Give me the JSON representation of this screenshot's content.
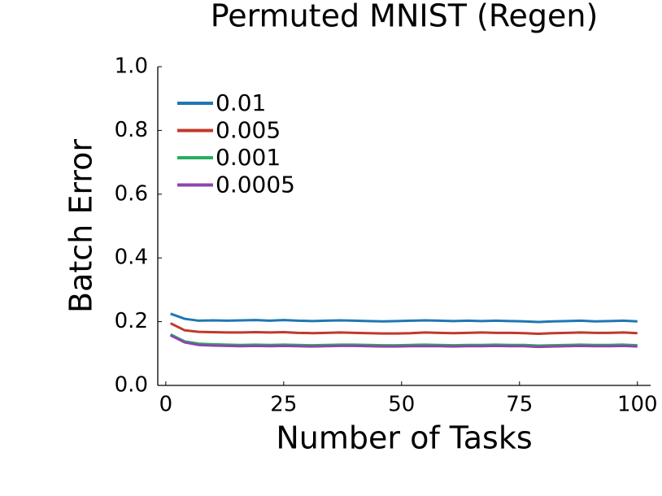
{
  "chart_data": {
    "type": "line",
    "title": "Permuted MNIST (Regen)",
    "x_label": "Number of Tasks",
    "y_label": "Batch Error",
    "x": [
      1,
      4,
      7,
      10,
      13,
      16,
      19,
      22,
      25,
      28,
      31,
      34,
      37,
      40,
      43,
      46,
      49,
      52,
      55,
      58,
      61,
      64,
      67,
      70,
      73,
      76,
      79,
      82,
      85,
      88,
      91,
      94,
      97,
      100
    ],
    "series": [
      {
        "name": "0.01",
        "color": "#1f77b4",
        "values": [
          0.225,
          0.209,
          0.203,
          0.204,
          0.203,
          0.204,
          0.205,
          0.203,
          0.205,
          0.203,
          0.202,
          0.203,
          0.204,
          0.203,
          0.202,
          0.201,
          0.202,
          0.203,
          0.204,
          0.203,
          0.202,
          0.203,
          0.202,
          0.203,
          0.202,
          0.201,
          0.199,
          0.201,
          0.202,
          0.203,
          0.201,
          0.202,
          0.203,
          0.201
        ]
      },
      {
        "name": "0.005",
        "color": "#c0392b",
        "values": [
          0.195,
          0.173,
          0.168,
          0.167,
          0.166,
          0.166,
          0.167,
          0.166,
          0.167,
          0.165,
          0.164,
          0.165,
          0.166,
          0.165,
          0.164,
          0.163,
          0.163,
          0.164,
          0.166,
          0.165,
          0.164,
          0.165,
          0.166,
          0.165,
          0.165,
          0.164,
          0.162,
          0.164,
          0.165,
          0.166,
          0.165,
          0.165,
          0.166,
          0.164
        ]
      },
      {
        "name": "0.001",
        "color": "#27ae60",
        "values": [
          0.16,
          0.138,
          0.131,
          0.129,
          0.128,
          0.127,
          0.128,
          0.127,
          0.128,
          0.127,
          0.126,
          0.127,
          0.128,
          0.128,
          0.127,
          0.126,
          0.126,
          0.127,
          0.128,
          0.127,
          0.126,
          0.127,
          0.127,
          0.128,
          0.127,
          0.127,
          0.125,
          0.126,
          0.127,
          0.128,
          0.127,
          0.127,
          0.128,
          0.126
        ]
      },
      {
        "name": "0.0005",
        "color": "#8e44ad",
        "values": [
          0.157,
          0.135,
          0.127,
          0.125,
          0.124,
          0.123,
          0.124,
          0.123,
          0.124,
          0.123,
          0.122,
          0.123,
          0.124,
          0.124,
          0.123,
          0.122,
          0.122,
          0.123,
          0.123,
          0.123,
          0.122,
          0.123,
          0.123,
          0.124,
          0.123,
          0.123,
          0.121,
          0.122,
          0.123,
          0.124,
          0.123,
          0.123,
          0.124,
          0.122
        ]
      }
    ],
    "xlim": [
      -1.7,
      102.8
    ],
    "ylim": [
      0,
      1
    ],
    "xticks": [
      0,
      25,
      50,
      75,
      100
    ],
    "yticks": [
      {
        "value": 0,
        "label": "0.0"
      },
      {
        "value": 0.2,
        "label": "0.2"
      },
      {
        "value": 0.4,
        "label": "0.4"
      },
      {
        "value": 0.6,
        "label": "0.6"
      },
      {
        "value": 0.8,
        "label": "0.8"
      },
      {
        "value": 1,
        "label": "1.0"
      }
    ],
    "legend": "upper left",
    "grid": false
  }
}
